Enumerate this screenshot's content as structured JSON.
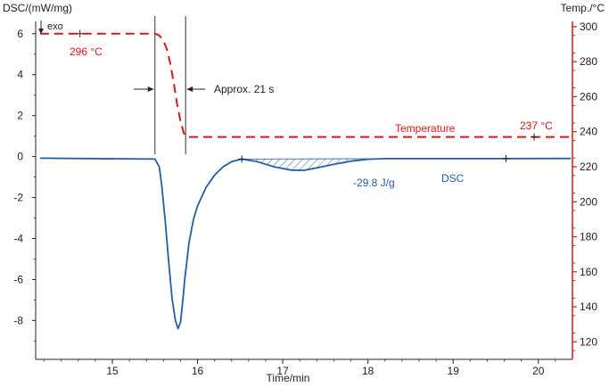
{
  "chart_data": {
    "type": "line",
    "left_axis_label": "DSC/(mW/mg)",
    "right_axis_label": "Temp./°C",
    "x_axis_label": "Time/min",
    "exo_label": "exo",
    "x_ticks": [
      15,
      16,
      17,
      18,
      19,
      20
    ],
    "y_left_ticks": [
      6,
      4,
      2,
      0,
      -2,
      -4,
      -6,
      -8
    ],
    "y_right_ticks": [
      300,
      280,
      260,
      240,
      220,
      200,
      180,
      160,
      140,
      120
    ],
    "xlim": [
      14.1,
      20.4
    ],
    "ylim_left": [
      -9.9,
      6.6
    ],
    "ylim_right": [
      110,
      303
    ],
    "colors": {
      "dsc": "#1f5fa6",
      "temperature": "#d7191c",
      "axis": "#222222",
      "shade": "#1f5fa6"
    },
    "series": [
      {
        "name": "Temperature",
        "axis": "right",
        "style": "dashed",
        "x": [
          14.15,
          15.5,
          15.55,
          15.6,
          15.64,
          15.68,
          15.72,
          15.76,
          15.8,
          15.84,
          15.88,
          20.38
        ],
        "y": [
          296,
          296,
          295,
          292,
          287,
          279,
          268,
          256,
          246,
          239,
          237,
          237
        ]
      },
      {
        "name": "DSC",
        "axis": "left",
        "style": "solid",
        "x": [
          14.15,
          15.5,
          15.55,
          15.58,
          15.62,
          15.66,
          15.7,
          15.74,
          15.77,
          15.8,
          15.82,
          15.85,
          15.9,
          15.95,
          16.0,
          16.1,
          16.2,
          16.3,
          16.4,
          16.52,
          16.7,
          16.9,
          17.1,
          17.25,
          17.4,
          17.6,
          17.8,
          18.0,
          18.2,
          18.6,
          19.0,
          19.6,
          20.38
        ],
        "y": [
          -0.08,
          -0.12,
          -0.5,
          -1.4,
          -3.1,
          -5.1,
          -6.9,
          -8.0,
          -8.4,
          -8.1,
          -7.3,
          -6.0,
          -4.2,
          -3.1,
          -2.4,
          -1.5,
          -0.9,
          -0.5,
          -0.25,
          -0.12,
          -0.25,
          -0.5,
          -0.66,
          -0.67,
          -0.55,
          -0.38,
          -0.22,
          -0.13,
          -0.1,
          -0.1,
          -0.1,
          -0.1,
          -0.09
        ]
      }
    ],
    "annotations": {
      "start_temperature": "296 °C",
      "end_temperature": "237 °C",
      "duration": "Approx. 21 s",
      "temperature_label": "Temperature",
      "dsc_label": "DSC",
      "peak_area": "-29.8 J/g"
    },
    "markers": [
      {
        "axis": "right",
        "x": 14.62,
        "y": 296
      },
      {
        "axis": "right",
        "x": 19.95,
        "y": 237
      },
      {
        "axis": "left",
        "x": 16.52,
        "y": -0.12
      },
      {
        "axis": "left",
        "x": 19.62,
        "y": -0.1
      }
    ],
    "vertical_lines": [
      15.5,
      15.86
    ],
    "shaded_region": [
      16.52,
      18.18
    ],
    "grid": false,
    "legend": "none"
  }
}
